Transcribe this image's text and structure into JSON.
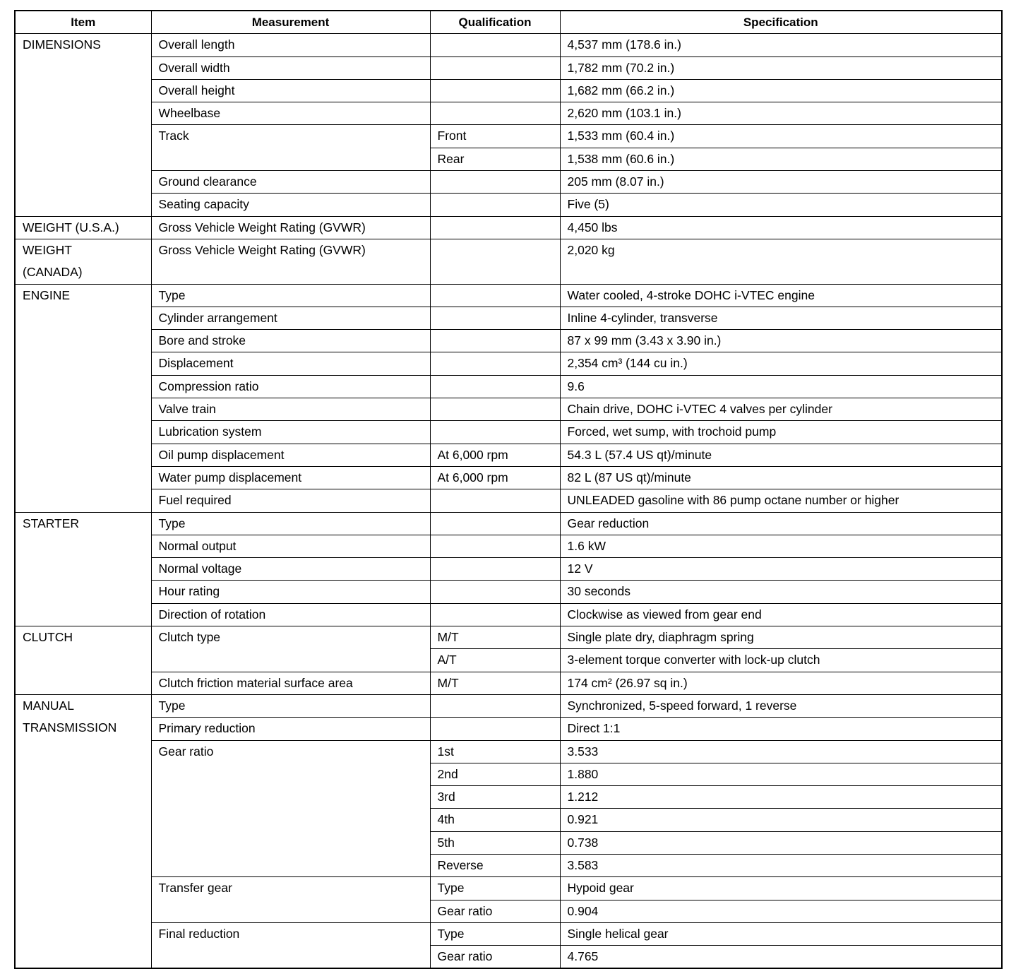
{
  "headers": [
    "Item",
    "Measurement",
    "Qualification",
    "Specification"
  ],
  "sections": [
    {
      "item": "DIMENSIONS",
      "rows": [
        {
          "measurement": "Overall length",
          "entries": [
            {
              "qualification": "",
              "specification": "4,537 mm (178.6 in.)"
            }
          ]
        },
        {
          "measurement": "Overall width",
          "entries": [
            {
              "qualification": "",
              "specification": "1,782 mm (70.2 in.)"
            }
          ]
        },
        {
          "measurement": "Overall height",
          "entries": [
            {
              "qualification": "",
              "specification": "1,682 mm (66.2 in.)"
            }
          ]
        },
        {
          "measurement": "Wheelbase",
          "entries": [
            {
              "qualification": "",
              "specification": "2,620 mm (103.1 in.)"
            }
          ]
        },
        {
          "measurement": "Track",
          "entries": [
            {
              "qualification": "Front",
              "specification": "1,533 mm (60.4 in.)"
            },
            {
              "qualification": "Rear",
              "specification": "1,538 mm (60.6 in.)"
            }
          ]
        },
        {
          "measurement": "Ground clearance",
          "entries": [
            {
              "qualification": "",
              "specification": "205 mm (8.07 in.)"
            }
          ]
        },
        {
          "measurement": "Seating capacity",
          "entries": [
            {
              "qualification": "",
              "specification": "Five (5)"
            }
          ]
        }
      ]
    },
    {
      "item": "WEIGHT (U.S.A.)",
      "rows": [
        {
          "measurement": "Gross Vehicle Weight Rating (GVWR)",
          "entries": [
            {
              "qualification": "",
              "specification": "4,450 lbs"
            }
          ]
        }
      ]
    },
    {
      "item": "WEIGHT\n(CANADA)",
      "rows": [
        {
          "measurement": "Gross Vehicle Weight Rating (GVWR)",
          "entries": [
            {
              "qualification": "",
              "specification": "2,020 kg"
            }
          ]
        }
      ]
    },
    {
      "item": "ENGINE",
      "rows": [
        {
          "measurement": "Type",
          "entries": [
            {
              "qualification": "",
              "specification": "Water cooled, 4-stroke DOHC i-VTEC engine"
            }
          ]
        },
        {
          "measurement": "Cylinder arrangement",
          "entries": [
            {
              "qualification": "",
              "specification": "Inline 4-cylinder, transverse"
            }
          ]
        },
        {
          "measurement": "Bore and stroke",
          "entries": [
            {
              "qualification": "",
              "specification": "87 x 99 mm (3.43 x 3.90 in.)"
            }
          ]
        },
        {
          "measurement": "Displacement",
          "entries": [
            {
              "qualification": "",
              "specification": "2,354 cm³ (144 cu in.)"
            }
          ]
        },
        {
          "measurement": "Compression ratio",
          "entries": [
            {
              "qualification": "",
              "specification": "9.6"
            }
          ]
        },
        {
          "measurement": "Valve train",
          "entries": [
            {
              "qualification": "",
              "specification": "Chain drive, DOHC i-VTEC 4 valves per cylinder"
            }
          ]
        },
        {
          "measurement": "Lubrication system",
          "entries": [
            {
              "qualification": "",
              "specification": "Forced, wet sump, with trochoid pump"
            }
          ]
        },
        {
          "measurement": "Oil pump displacement",
          "entries": [
            {
              "qualification": "At 6,000 rpm",
              "specification": "54.3 L (57.4 US qt)/minute"
            }
          ]
        },
        {
          "measurement": "Water pump displacement",
          "entries": [
            {
              "qualification": "At 6,000 rpm",
              "specification": "82 L (87 US qt)/minute"
            }
          ]
        },
        {
          "measurement": "Fuel required",
          "entries": [
            {
              "qualification": "",
              "specification": "UNLEADED gasoline with 86 pump octane number or higher"
            }
          ]
        }
      ]
    },
    {
      "item": "STARTER",
      "rows": [
        {
          "measurement": "Type",
          "entries": [
            {
              "qualification": "",
              "specification": "Gear reduction"
            }
          ]
        },
        {
          "measurement": "Normal output",
          "entries": [
            {
              "qualification": "",
              "specification": "1.6 kW"
            }
          ]
        },
        {
          "measurement": "Normal voltage",
          "entries": [
            {
              "qualification": "",
              "specification": "12 V"
            }
          ]
        },
        {
          "measurement": "Hour rating",
          "entries": [
            {
              "qualification": "",
              "specification": "30 seconds"
            }
          ]
        },
        {
          "measurement": "Direction of rotation",
          "entries": [
            {
              "qualification": "",
              "specification": "Clockwise as viewed from gear end"
            }
          ]
        }
      ]
    },
    {
      "item": "CLUTCH",
      "rows": [
        {
          "measurement": "Clutch type",
          "entries": [
            {
              "qualification": "M/T",
              "specification": "Single plate dry, diaphragm spring"
            },
            {
              "qualification": "A/T",
              "specification": "3-element torque converter with lock-up clutch"
            }
          ]
        },
        {
          "measurement": "Clutch friction material surface area",
          "entries": [
            {
              "qualification": "M/T",
              "specification": "174 cm² (26.97 sq in.)"
            }
          ]
        }
      ]
    },
    {
      "item": "MANUAL\nTRANSMISSION",
      "rows": [
        {
          "measurement": "Type",
          "entries": [
            {
              "qualification": "",
              "specification": "Synchronized, 5-speed forward, 1 reverse"
            }
          ]
        },
        {
          "measurement": "Primary reduction",
          "entries": [
            {
              "qualification": "",
              "specification": "Direct 1:1"
            }
          ]
        },
        {
          "measurement": "Gear ratio",
          "entries": [
            {
              "qualification": "1st",
              "specification": "3.533"
            },
            {
              "qualification": "2nd",
              "specification": "1.880"
            },
            {
              "qualification": "3rd",
              "specification": "1.212"
            },
            {
              "qualification": "4th",
              "specification": "0.921"
            },
            {
              "qualification": "5th",
              "specification": "0.738"
            },
            {
              "qualification": "Reverse",
              "specification": "3.583"
            }
          ]
        },
        {
          "measurement": "Transfer gear",
          "entries": [
            {
              "qualification": "Type",
              "specification": "Hypoid gear"
            },
            {
              "qualification": "Gear ratio",
              "specification": "0.904"
            }
          ]
        },
        {
          "measurement": "Final reduction",
          "entries": [
            {
              "qualification": "Type",
              "specification": "Single helical gear"
            },
            {
              "qualification": "Gear ratio",
              "specification": "4.765"
            }
          ]
        }
      ]
    }
  ]
}
